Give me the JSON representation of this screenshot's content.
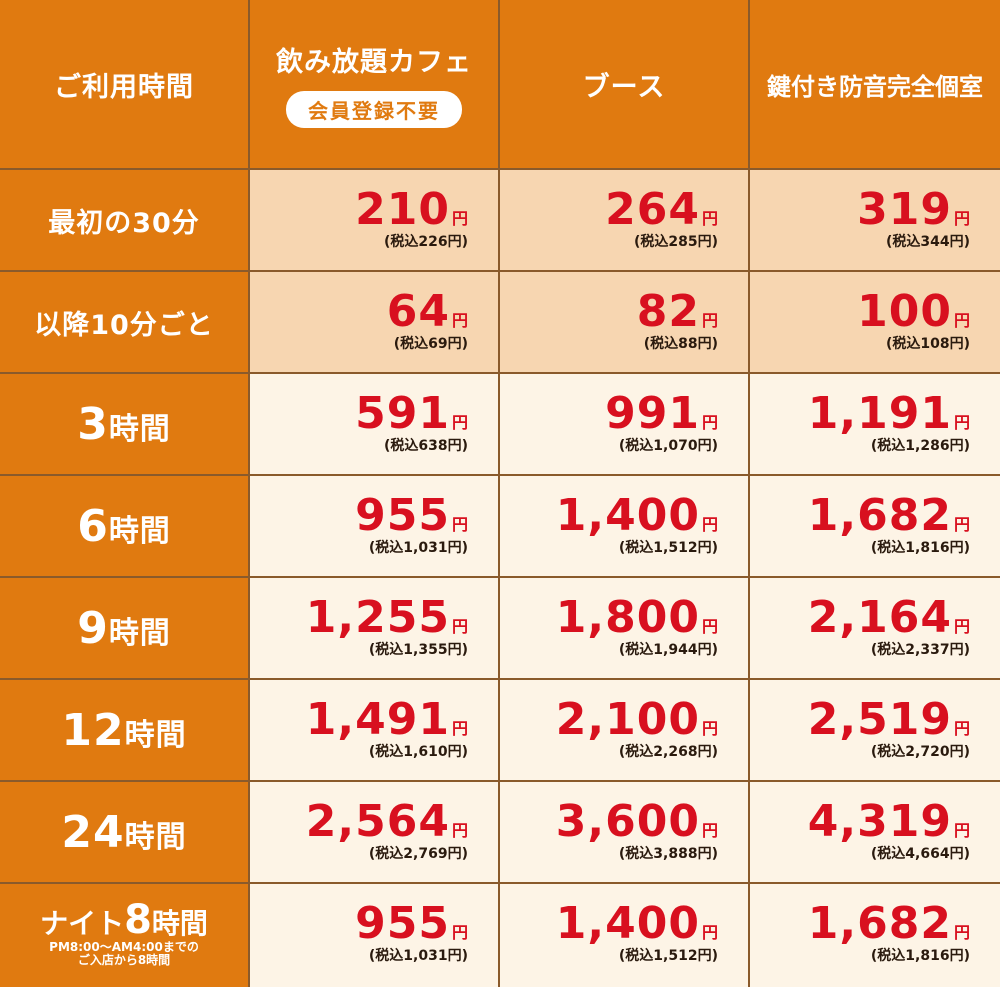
{
  "header": {
    "col_time": "ご利用時間",
    "col_cafe": "飲み放題カフェ",
    "cafe_badge": "会員登録不要",
    "col_booth": "ブース",
    "col_room": "鍵付き防音完全個室"
  },
  "yen_mark": "円",
  "rows": [
    {
      "label": "最初の30分",
      "cafe": "210",
      "cafe_tax": "(税込226円)",
      "booth": "264",
      "booth_tax": "(税込285円)",
      "room": "319",
      "room_tax": "(税込344円)"
    },
    {
      "label": "以降10分ごと",
      "cafe": "64",
      "cafe_tax": "(税込69円)",
      "booth": "82",
      "booth_tax": "(税込88円)",
      "room": "100",
      "room_tax": "(税込108円)"
    },
    {
      "label_num": "3",
      "label_unit": "時間",
      "cafe": "591",
      "cafe_tax": "(税込638円)",
      "booth": "991",
      "booth_tax": "(税込1,070円)",
      "room": "1,191",
      "room_tax": "(税込1,286円)"
    },
    {
      "label_num": "6",
      "label_unit": "時間",
      "cafe": "955",
      "cafe_tax": "(税込1,031円)",
      "booth": "1,400",
      "booth_tax": "(税込1,512円)",
      "room": "1,682",
      "room_tax": "(税込1,816円)"
    },
    {
      "label_num": "9",
      "label_unit": "時間",
      "cafe": "1,255",
      "cafe_tax": "(税込1,355円)",
      "booth": "1,800",
      "booth_tax": "(税込1,944円)",
      "room": "2,164",
      "room_tax": "(税込2,337円)"
    },
    {
      "label_num": "12",
      "label_unit": "時間",
      "cafe": "1,491",
      "cafe_tax": "(税込1,610円)",
      "booth": "2,100",
      "booth_tax": "(税込2,268円)",
      "room": "2,519",
      "room_tax": "(税込2,720円)"
    },
    {
      "label_num": "24",
      "label_unit": "時間",
      "cafe": "2,564",
      "cafe_tax": "(税込2,769円)",
      "booth": "3,600",
      "booth_tax": "(税込3,888円)",
      "room": "4,319",
      "room_tax": "(税込4,664円)"
    },
    {
      "label_prefix": "ナイト",
      "label_num": "8",
      "label_unit": "時間",
      "label_sub1": "PM8:00～AM4:00までの",
      "label_sub2": "ご入店から8時間",
      "cafe": "955",
      "cafe_tax": "(税込1,031円)",
      "booth": "1,400",
      "booth_tax": "(税込1,512円)",
      "room": "1,682",
      "room_tax": "(税込1,816円)"
    }
  ],
  "colors": {
    "orange": "#e07a10",
    "light": "#f7d6b1",
    "cream": "#fdf4e6",
    "price_red": "#d8101f",
    "border": "#8a5a2b"
  }
}
